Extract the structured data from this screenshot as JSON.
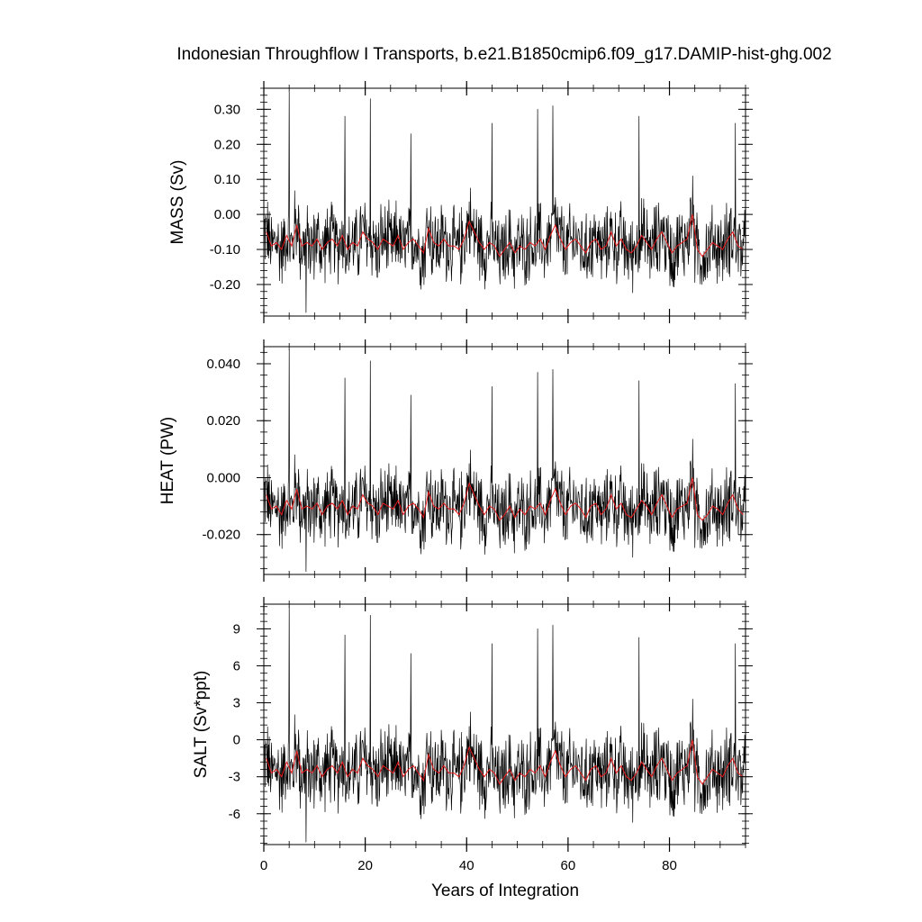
{
  "chart_data": {
    "type": "line",
    "title": "Indonesian Throughflow I Transports, b.e21.B1850cmip6.f09_g17.DAMIP-hist-ghg.002",
    "xlabel": "Years of Integration",
    "xlim": [
      0,
      95
    ],
    "x_ticks": [
      "0",
      "20",
      "40",
      "60",
      "80"
    ],
    "colors": {
      "monthly": "#000000",
      "annual": "#e8191b"
    },
    "panels": [
      {
        "ylabel": "MASS (Sv)",
        "ylim": [
          -0.29,
          0.36
        ],
        "y_ticks": [
          "-0.20",
          "-0.10",
          "0.00",
          "0.10",
          "0.20",
          "0.30"
        ],
        "annual_mean": [
          -0.05,
          -0.09,
          -0.08,
          -0.1,
          -0.06,
          -0.09,
          -0.03,
          -0.09,
          -0.08,
          -0.09,
          -0.07,
          -0.1,
          -0.08,
          -0.07,
          -0.09,
          -0.06,
          -0.1,
          -0.08,
          -0.09,
          -0.05,
          -0.07,
          -0.08,
          -0.1,
          -0.07,
          -0.08,
          -0.09,
          -0.06,
          -0.1,
          -0.08,
          -0.07,
          -0.09,
          -0.11,
          -0.04,
          -0.08,
          -0.09,
          -0.07,
          -0.09,
          -0.09,
          -0.1,
          -0.07,
          -0.02,
          -0.05,
          -0.08,
          -0.1,
          -0.08,
          -0.09,
          -0.12,
          -0.1,
          -0.08,
          -0.11,
          -0.09,
          -0.1,
          -0.08,
          -0.09,
          -0.07,
          -0.1,
          -0.06,
          -0.03,
          -0.07,
          -0.1,
          -0.08,
          -0.07,
          -0.09,
          -0.11,
          -0.08,
          -0.07,
          -0.1,
          -0.09,
          -0.05,
          -0.09,
          -0.07,
          -0.1,
          -0.11,
          -0.09,
          -0.06,
          -0.08,
          -0.1,
          -0.07,
          -0.05,
          -0.08,
          -0.11,
          -0.09,
          -0.08,
          -0.07,
          0.0,
          -0.1,
          -0.12,
          -0.1,
          -0.08,
          -0.09,
          -0.1,
          -0.07,
          -0.05,
          -0.09,
          -0.1
        ],
        "spikes": [
          [
            5.0,
            0.35
          ],
          [
            8.3,
            -0.28
          ],
          [
            21.0,
            0.33
          ],
          [
            16.0,
            0.28
          ],
          [
            29.0,
            0.23
          ],
          [
            45.0,
            0.26
          ],
          [
            54.0,
            0.3
          ],
          [
            57.0,
            0.31
          ],
          [
            74.0,
            0.28
          ],
          [
            93.0,
            0.26
          ]
        ]
      },
      {
        "ylabel": "HEAT (PW)",
        "ylim": [
          -0.034,
          0.046
        ],
        "y_ticks": [
          "-0.020",
          "0.000",
          "0.020",
          "0.040"
        ],
        "annual_mean": [
          -0.006,
          -0.011,
          -0.01,
          -0.013,
          -0.008,
          -0.011,
          -0.004,
          -0.011,
          -0.01,
          -0.011,
          -0.009,
          -0.013,
          -0.01,
          -0.009,
          -0.011,
          -0.008,
          -0.013,
          -0.01,
          -0.011,
          -0.006,
          -0.009,
          -0.01,
          -0.013,
          -0.009,
          -0.01,
          -0.011,
          -0.008,
          -0.013,
          -0.01,
          -0.009,
          -0.011,
          -0.014,
          -0.005,
          -0.01,
          -0.011,
          -0.009,
          -0.011,
          -0.011,
          -0.013,
          -0.009,
          -0.002,
          -0.006,
          -0.01,
          -0.013,
          -0.01,
          -0.011,
          -0.015,
          -0.013,
          -0.01,
          -0.014,
          -0.011,
          -0.013,
          -0.01,
          -0.011,
          -0.009,
          -0.013,
          -0.008,
          -0.004,
          -0.009,
          -0.013,
          -0.01,
          -0.009,
          -0.011,
          -0.014,
          -0.01,
          -0.009,
          -0.013,
          -0.011,
          -0.006,
          -0.011,
          -0.009,
          -0.013,
          -0.014,
          -0.011,
          -0.008,
          -0.01,
          -0.013,
          -0.009,
          -0.006,
          -0.01,
          -0.014,
          -0.011,
          -0.01,
          -0.009,
          0.0,
          -0.013,
          -0.015,
          -0.013,
          -0.01,
          -0.011,
          -0.013,
          -0.009,
          -0.006,
          -0.011,
          -0.013
        ],
        "spikes": [
          [
            5.0,
            0.045
          ],
          [
            8.3,
            -0.033
          ],
          [
            21.0,
            0.041
          ],
          [
            16.0,
            0.035
          ],
          [
            29.0,
            0.029
          ],
          [
            45.0,
            0.032
          ],
          [
            54.0,
            0.037
          ],
          [
            57.0,
            0.038
          ],
          [
            74.0,
            0.034
          ],
          [
            93.0,
            0.033
          ]
        ]
      },
      {
        "ylabel": "SALT (Sv*ppt)",
        "ylim": [
          -8.5,
          11
        ],
        "y_ticks": [
          "-6",
          "-3",
          "0",
          "3",
          "6",
          "9"
        ],
        "annual_mean": [
          -1.5,
          -2.7,
          -2.4,
          -3.0,
          -1.8,
          -2.7,
          -0.9,
          -2.7,
          -2.4,
          -2.7,
          -2.1,
          -3.0,
          -2.4,
          -2.1,
          -2.7,
          -1.8,
          -3.0,
          -2.4,
          -2.7,
          -1.5,
          -2.1,
          -2.4,
          -3.0,
          -2.1,
          -2.4,
          -2.7,
          -1.8,
          -3.0,
          -2.4,
          -2.1,
          -2.7,
          -3.3,
          -1.2,
          -2.4,
          -2.7,
          -2.1,
          -2.7,
          -2.7,
          -3.0,
          -2.1,
          -0.6,
          -1.5,
          -2.4,
          -3.0,
          -2.4,
          -2.7,
          -3.6,
          -3.0,
          -2.4,
          -3.3,
          -2.7,
          -3.0,
          -2.4,
          -2.7,
          -2.1,
          -3.0,
          -1.8,
          -0.9,
          -2.1,
          -3.0,
          -2.4,
          -2.1,
          -2.7,
          -3.3,
          -2.4,
          -2.1,
          -3.0,
          -2.7,
          -1.5,
          -2.7,
          -2.1,
          -3.0,
          -3.3,
          -2.7,
          -1.8,
          -2.4,
          -3.0,
          -2.1,
          -1.5,
          -2.4,
          -3.3,
          -2.7,
          -2.4,
          -2.1,
          0.0,
          -3.0,
          -3.6,
          -3.0,
          -2.4,
          -2.7,
          -3.0,
          -2.1,
          -1.5,
          -2.7,
          -3.0
        ],
        "spikes": [
          [
            5.0,
            10.8
          ],
          [
            8.3,
            -8.3
          ],
          [
            21.0,
            10.1
          ],
          [
            16.0,
            8.5
          ],
          [
            29.0,
            7.0
          ],
          [
            45.0,
            7.8
          ],
          [
            54.0,
            9.0
          ],
          [
            57.0,
            9.3
          ],
          [
            74.0,
            8.3
          ],
          [
            93.0,
            7.8
          ]
        ]
      }
    ]
  }
}
